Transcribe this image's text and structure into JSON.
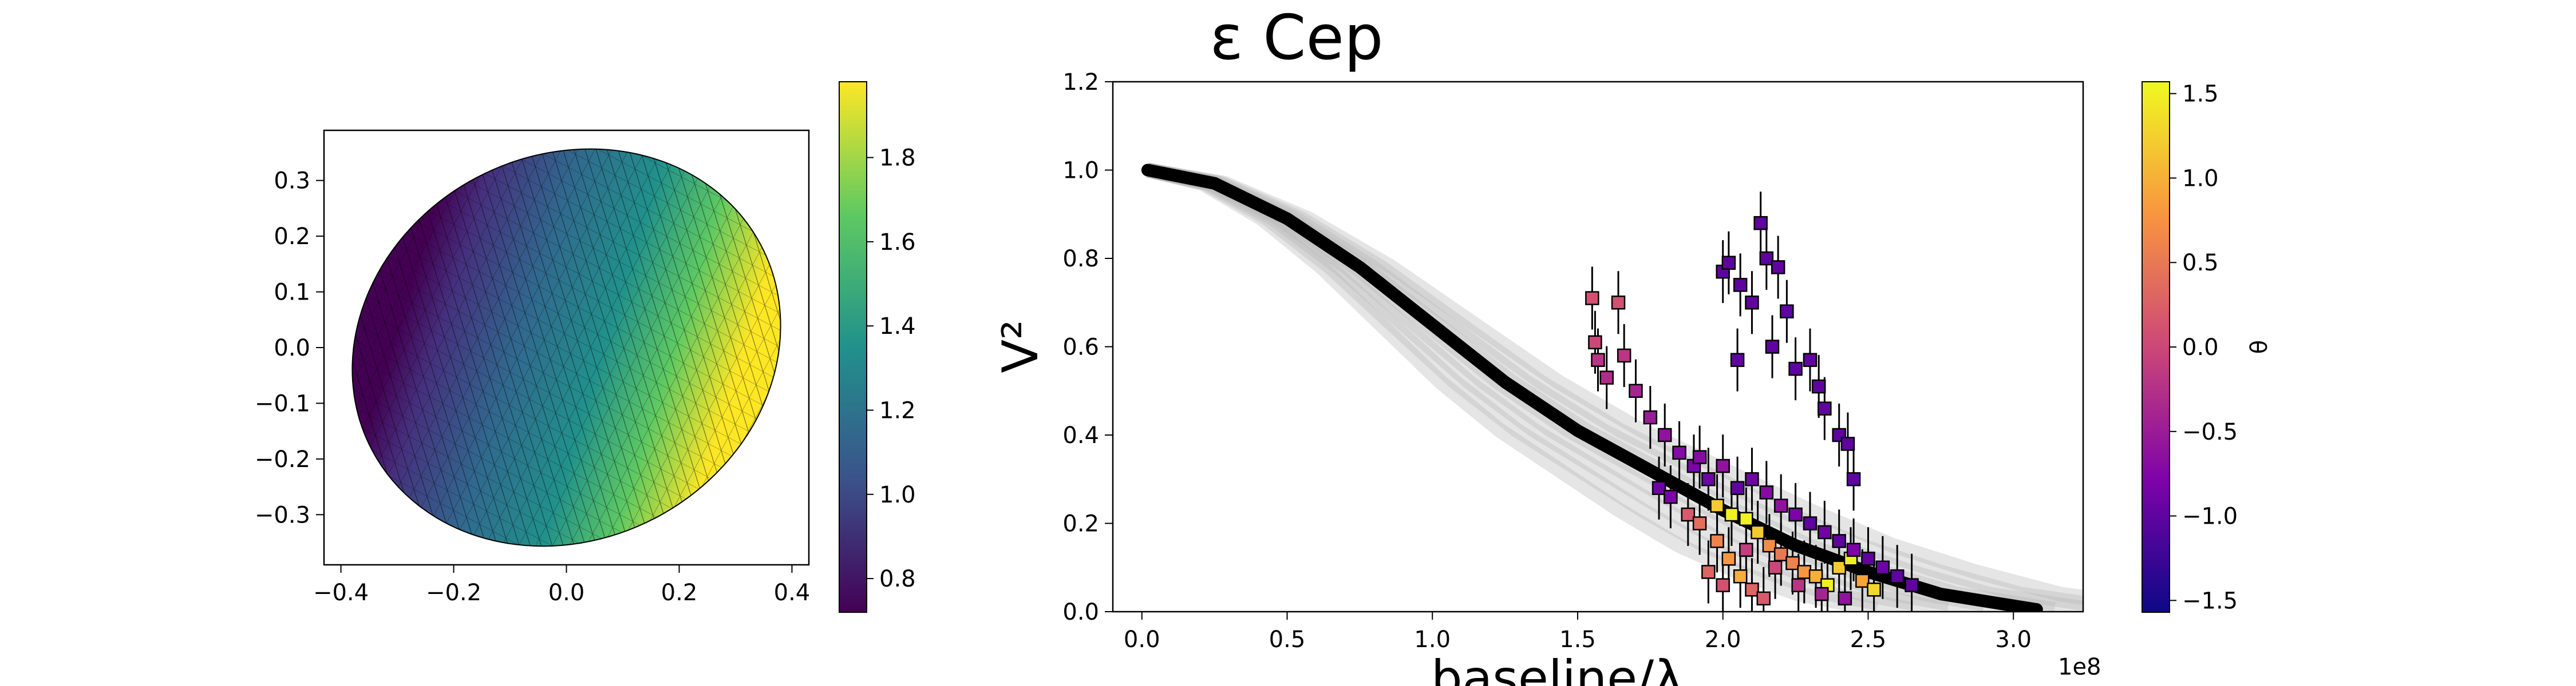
{
  "chart_data": [
    {
      "type": "heatmap",
      "title": "",
      "xlabel": "",
      "ylabel": "",
      "xlim": [
        -0.43,
        0.43
      ],
      "ylim": [
        -0.39,
        0.39
      ],
      "xticks": [
        -0.4,
        -0.2,
        0.0,
        0.2,
        0.4
      ],
      "xtick_labels": [
        "−0.4",
        "−0.2",
        "0.0",
        "0.2",
        "0.4"
      ],
      "yticks": [
        0.3,
        0.2,
        0.1,
        0.0,
        -0.1,
        -0.2,
        -0.3
      ],
      "ytick_labels": [
        "0.3",
        "0.2",
        "0.1",
        "0.0",
        "−0.1",
        "−0.2",
        "−0.3"
      ],
      "shape": {
        "semi_axis_x": 0.39,
        "semi_axis_y": 0.345,
        "rotation_deg": 28,
        "min_at": [
          -0.22,
          0.2
        ],
        "max_at": [
          0.2,
          -0.23
        ]
      },
      "colorbar": {
        "colormap": "viridis",
        "range": [
          0.72,
          1.98
        ],
        "ticks": [
          1.8,
          1.6,
          1.4,
          1.2,
          1.0,
          0.8
        ],
        "tick_labels": [
          "1.8",
          "1.6",
          "1.4",
          "1.2",
          "1.0",
          "0.8"
        ]
      }
    },
    {
      "type": "scatter",
      "title": "ε Cep",
      "xlabel": "baseline/λ",
      "ylabel": "V²",
      "x_multiplier_label": "1e8",
      "xlim": [
        -10000000.0,
        324000000.0
      ],
      "ylim": [
        0.0,
        1.2
      ],
      "xticks": [
        0.0,
        50000000.0,
        100000000.0,
        150000000.0,
        200000000.0,
        250000000.0,
        300000000.0
      ],
      "xtick_labels": [
        "0.0",
        "0.5",
        "1.0",
        "1.5",
        "2.0",
        "2.5",
        "3.0"
      ],
      "yticks": [
        0.0,
        0.2,
        0.4,
        0.6,
        0.8,
        1.0,
        1.2
      ],
      "ytick_labels": [
        "0.0",
        "0.2",
        "0.4",
        "0.6",
        "0.8",
        "1.0",
        "1.2"
      ],
      "model_curve": {
        "x": [
          2000000.0,
          25000000.0,
          50000000.0,
          75000000.0,
          100000000.0,
          125000000.0,
          150000000.0,
          175000000.0,
          200000000.0,
          225000000.0,
          250000000.0,
          275000000.0,
          308000000.0
        ],
        "y": [
          1.0,
          0.97,
          0.89,
          0.78,
          0.65,
          0.52,
          0.41,
          0.32,
          0.23,
          0.15,
          0.09,
          0.04,
          0.005
        ]
      },
      "series": [
        {
          "points": [
            {
              "x": 155000000.0,
              "y": 0.71,
              "theta": 0.1
            },
            {
              "x": 164000000.0,
              "y": 0.7,
              "theta": 0.1
            },
            {
              "x": 156000000.0,
              "y": 0.61,
              "theta": 0.0
            },
            {
              "x": 157000000.0,
              "y": 0.57,
              "theta": -0.2
            },
            {
              "x": 160000000.0,
              "y": 0.53,
              "theta": -0.3
            },
            {
              "x": 166000000.0,
              "y": 0.58,
              "theta": -0.2
            },
            {
              "x": 170000000.0,
              "y": 0.5,
              "theta": -0.4
            },
            {
              "x": 175000000.0,
              "y": 0.44,
              "theta": -0.5
            },
            {
              "x": 180000000.0,
              "y": 0.4,
              "theta": -0.6
            },
            {
              "x": 185000000.0,
              "y": 0.36,
              "theta": -0.7
            },
            {
              "x": 190000000.0,
              "y": 0.33,
              "theta": -0.8
            },
            {
              "x": 195000000.0,
              "y": 0.3,
              "theta": -0.9
            },
            {
              "x": 200000000.0,
              "y": 0.77,
              "theta": -1.0
            },
            {
              "x": 202000000.0,
              "y": 0.79,
              "theta": -1.0
            },
            {
              "x": 206000000.0,
              "y": 0.74,
              "theta": -1.0
            },
            {
              "x": 210000000.0,
              "y": 0.7,
              "theta": -1.0
            },
            {
              "x": 213000000.0,
              "y": 0.88,
              "theta": -1.0
            },
            {
              "x": 215000000.0,
              "y": 0.8,
              "theta": -1.0
            },
            {
              "x": 217000000.0,
              "y": 0.6,
              "theta": -1.0
            },
            {
              "x": 219000000.0,
              "y": 0.78,
              "theta": -1.0
            },
            {
              "x": 222000000.0,
              "y": 0.68,
              "theta": -1.0
            },
            {
              "x": 225000000.0,
              "y": 0.55,
              "theta": -1.0
            },
            {
              "x": 230000000.0,
              "y": 0.57,
              "theta": -1.0
            },
            {
              "x": 235000000.0,
              "y": 0.46,
              "theta": -1.0
            },
            {
              "x": 240000000.0,
              "y": 0.4,
              "theta": -1.0
            },
            {
              "x": 243000000.0,
              "y": 0.38,
              "theta": -1.0
            },
            {
              "x": 245000000.0,
              "y": 0.3,
              "theta": -1.0
            },
            {
              "x": 205000000.0,
              "y": 0.57,
              "theta": -1.0
            },
            {
              "x": 233000000.0,
              "y": 0.51,
              "theta": -1.0
            },
            {
              "x": 178000000.0,
              "y": 0.28,
              "theta": -0.9
            },
            {
              "x": 182000000.0,
              "y": 0.26,
              "theta": -0.8
            },
            {
              "x": 188000000.0,
              "y": 0.22,
              "theta": 0.2
            },
            {
              "x": 192000000.0,
              "y": 0.2,
              "theta": 0.4
            },
            {
              "x": 198000000.0,
              "y": 0.16,
              "theta": 0.6
            },
            {
              "x": 202000000.0,
              "y": 0.12,
              "theta": 0.8
            },
            {
              "x": 206000000.0,
              "y": 0.08,
              "theta": 1.0
            },
            {
              "x": 210000000.0,
              "y": 0.05,
              "theta": 0.3
            },
            {
              "x": 214000000.0,
              "y": 0.03,
              "theta": 0.2
            },
            {
              "x": 198000000.0,
              "y": 0.24,
              "theta": 1.2
            },
            {
              "x": 203000000.0,
              "y": 0.22,
              "theta": 1.5
            },
            {
              "x": 208000000.0,
              "y": 0.21,
              "theta": 1.5
            },
            {
              "x": 212000000.0,
              "y": 0.18,
              "theta": 1.2
            },
            {
              "x": 216000000.0,
              "y": 0.15,
              "theta": 0.7
            },
            {
              "x": 220000000.0,
              "y": 0.13,
              "theta": 0.5
            },
            {
              "x": 224000000.0,
              "y": 0.11,
              "theta": 0.6
            },
            {
              "x": 228000000.0,
              "y": 0.09,
              "theta": 0.8
            },
            {
              "x": 232000000.0,
              "y": 0.08,
              "theta": 1.0
            },
            {
              "x": 236000000.0,
              "y": 0.06,
              "theta": 1.5
            },
            {
              "x": 240000000.0,
              "y": 0.1,
              "theta": 1.2
            },
            {
              "x": 244000000.0,
              "y": 0.12,
              "theta": 1.5
            },
            {
              "x": 248000000.0,
              "y": 0.07,
              "theta": 0.9
            },
            {
              "x": 252000000.0,
              "y": 0.05,
              "theta": 1.3
            },
            {
              "x": 205000000.0,
              "y": 0.28,
              "theta": -1.0
            },
            {
              "x": 210000000.0,
              "y": 0.3,
              "theta": -0.9
            },
            {
              "x": 215000000.0,
              "y": 0.27,
              "theta": -0.7
            },
            {
              "x": 220000000.0,
              "y": 0.24,
              "theta": -0.6
            },
            {
              "x": 225000000.0,
              "y": 0.22,
              "theta": -0.8
            },
            {
              "x": 230000000.0,
              "y": 0.2,
              "theta": -1.0
            },
            {
              "x": 235000000.0,
              "y": 0.18,
              "theta": -0.9
            },
            {
              "x": 240000000.0,
              "y": 0.16,
              "theta": -1.0
            },
            {
              "x": 245000000.0,
              "y": 0.14,
              "theta": -0.8
            },
            {
              "x": 250000000.0,
              "y": 0.12,
              "theta": -1.0
            },
            {
              "x": 255000000.0,
              "y": 0.1,
              "theta": -0.9
            },
            {
              "x": 260000000.0,
              "y": 0.08,
              "theta": -1.0
            },
            {
              "x": 265000000.0,
              "y": 0.06,
              "theta": -1.0
            },
            {
              "x": 192000000.0,
              "y": 0.35,
              "theta": -0.7
            },
            {
              "x": 200000000.0,
              "y": 0.33,
              "theta": -0.6
            },
            {
              "x": 208000000.0,
              "y": 0.14,
              "theta": -0.1
            },
            {
              "x": 218000000.0,
              "y": 0.1,
              "theta": 0.0
            },
            {
              "x": 226000000.0,
              "y": 0.06,
              "theta": -0.2
            },
            {
              "x": 234000000.0,
              "y": 0.04,
              "theta": -0.4
            },
            {
              "x": 242000000.0,
              "y": 0.03,
              "theta": -0.6
            },
            {
              "x": 195000000.0,
              "y": 0.09,
              "theta": 0.3
            },
            {
              "x": 200000000.0,
              "y": 0.06,
              "theta": 0.1
            }
          ]
        }
      ],
      "colorbar": {
        "colormap": "plasma",
        "label": "θ",
        "range": [
          -1.57,
          1.57
        ],
        "ticks": [
          1.5,
          1.0,
          0.5,
          0.0,
          -0.5,
          -1.0,
          -1.5
        ],
        "tick_labels": [
          "1.5",
          "1.0",
          "0.5",
          "0.0",
          "−0.5",
          "−1.0",
          "−1.5"
        ]
      }
    }
  ]
}
